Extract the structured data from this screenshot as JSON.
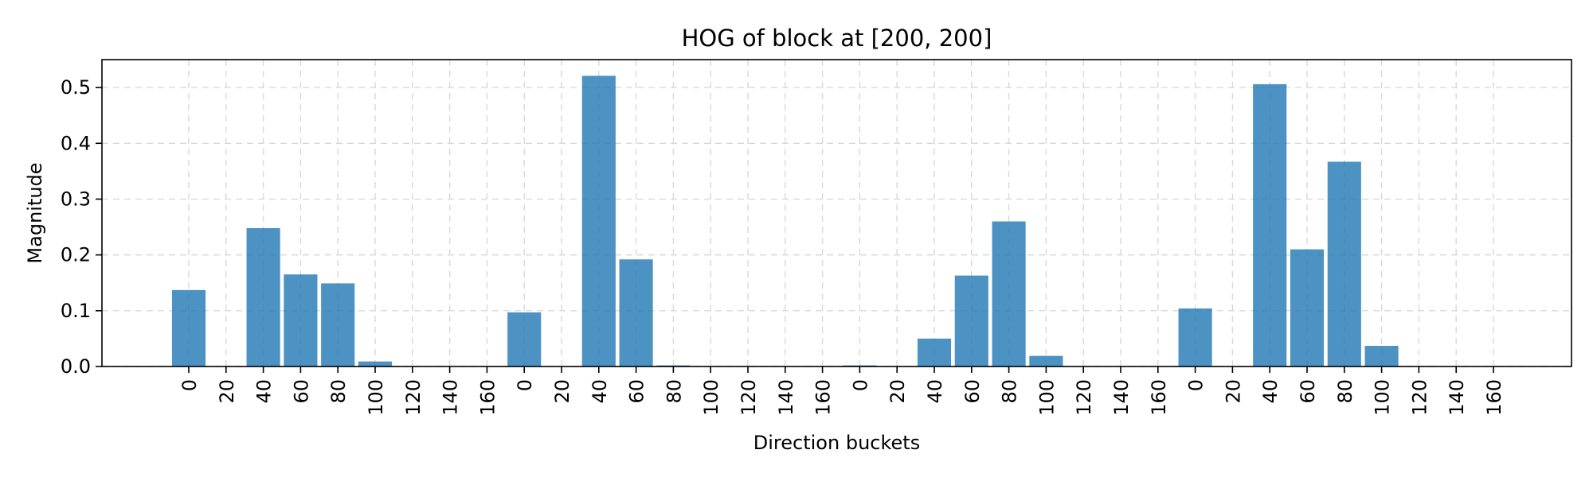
{
  "chart_data": {
    "type": "bar",
    "title": "HOG of block at [200, 200]",
    "xlabel": "Direction buckets",
    "ylabel": "Magnitude",
    "categories": [
      "0",
      "20",
      "40",
      "60",
      "80",
      "100",
      "120",
      "140",
      "160",
      "0",
      "20",
      "40",
      "60",
      "80",
      "100",
      "120",
      "140",
      "160",
      "0",
      "20",
      "40",
      "60",
      "80",
      "100",
      "120",
      "140",
      "160",
      "0",
      "20",
      "40",
      "60",
      "80",
      "100",
      "120",
      "140",
      "160"
    ],
    "values": [
      0.137,
      0.0,
      0.248,
      0.165,
      0.149,
      0.009,
      0.0,
      0.0,
      0.0,
      0.097,
      0.0,
      0.521,
      0.192,
      0.002,
      0.0,
      0.0,
      0.0,
      0.0,
      0.002,
      0.0,
      0.05,
      0.163,
      0.26,
      0.019,
      0.0,
      0.0,
      0.0,
      0.104,
      0.0,
      0.506,
      0.21,
      0.367,
      0.037,
      0.0,
      0.0,
      0.0
    ],
    "ylim": [
      0,
      0.55
    ],
    "yticks": [
      0.0,
      0.1,
      0.2,
      0.3,
      0.4,
      0.5
    ],
    "yticklabels": [
      "0.0",
      "0.1",
      "0.2",
      "0.3",
      "0.4",
      "0.5"
    ],
    "grid": true,
    "bar_color": "#1f77b4"
  }
}
